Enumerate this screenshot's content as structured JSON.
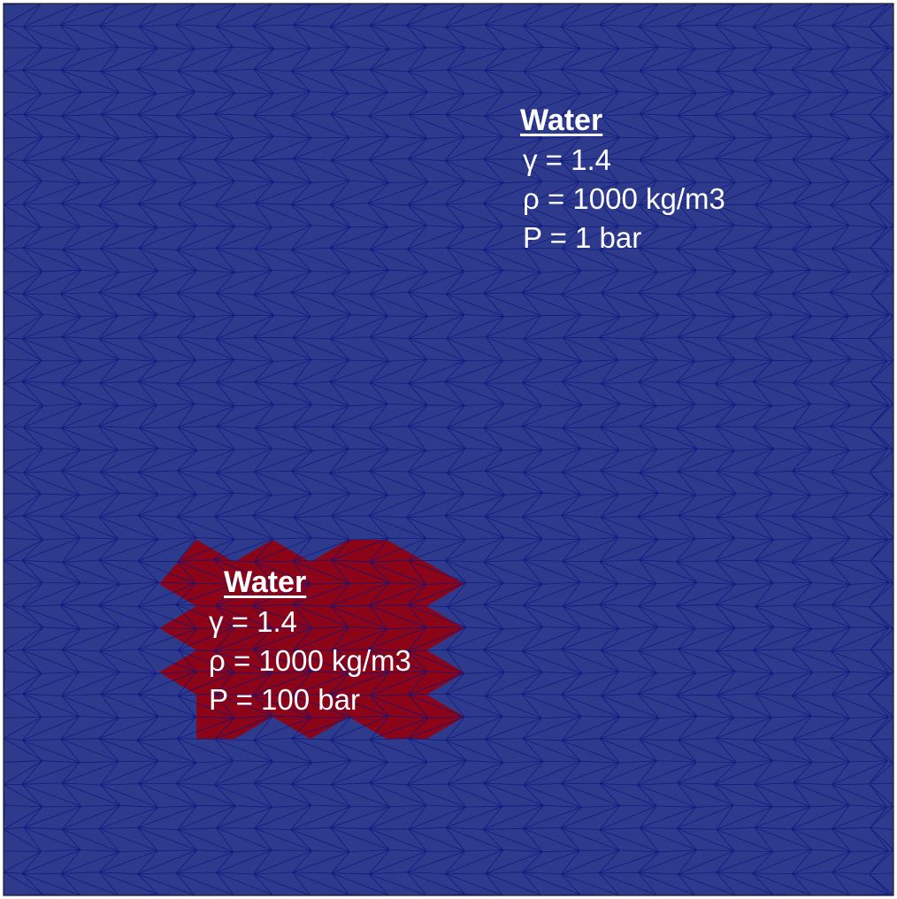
{
  "colors": {
    "ambient_fill": "#2e3a8c",
    "high_pressure_fill": "#8b0418",
    "mesh_line": "#0a1680",
    "label_text": "#ffffff",
    "border": "#222222"
  },
  "regions": {
    "ambient": {
      "material": "Water",
      "gamma": "γ = 1.4",
      "density": "ρ = 1000 kg/m3",
      "pressure": "P = 1 bar"
    },
    "high_pressure": {
      "material": "Water",
      "gamma": "γ = 1.4",
      "density": "ρ = 1000 kg/m3",
      "pressure": "P = 100 bar"
    }
  }
}
